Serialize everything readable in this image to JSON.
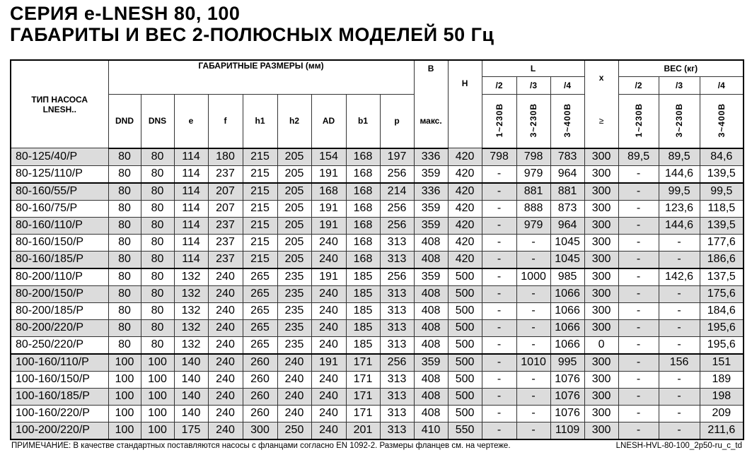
{
  "title_line1": "СЕРИЯ e-LNESH 80, 100",
  "title_line2": "ГАБАРИТЫ И ВЕС 2-ПОЛЮСНЫХ МОДЕЛЕЙ 50 Гц",
  "header": {
    "type_label": "ТИП НАСОСА LNESH..",
    "dims_group": "ГАБАРИТНЫЕ РАЗМЕРЫ (мм)",
    "dims_cols": [
      "DND",
      "DNS",
      "e",
      "f",
      "h1",
      "h2",
      "AD",
      "b1",
      "p"
    ],
    "b_label": "B",
    "b_sub": "макс.",
    "h_label": "H",
    "l_group": "L",
    "l_cols": [
      "/2",
      "/3",
      "/4"
    ],
    "l_volts": [
      "1~230В",
      "3~230В",
      "3~400В"
    ],
    "x_label": "x",
    "x_sub": "≥",
    "w_group": "ВЕС (кг)",
    "w_cols": [
      "/2",
      "/3",
      "/4"
    ],
    "w_volts": [
      "1~230В",
      "3~230В",
      "3~400В"
    ]
  },
  "rows": [
    [
      "80-125/40/P",
      "80",
      "80",
      "114",
      "180",
      "215",
      "205",
      "154",
      "168",
      "197",
      "336",
      "420",
      "798",
      "798",
      "783",
      "300",
      "89,5",
      "89,5",
      "84,6"
    ],
    [
      "80-125/110/P",
      "80",
      "80",
      "114",
      "237",
      "215",
      "205",
      "191",
      "168",
      "256",
      "359",
      "420",
      "-",
      "979",
      "964",
      "300",
      "-",
      "144,6",
      "139,5"
    ],
    [
      "80-160/55/P",
      "80",
      "80",
      "114",
      "207",
      "215",
      "205",
      "168",
      "168",
      "214",
      "336",
      "420",
      "-",
      "881",
      "881",
      "300",
      "-",
      "99,5",
      "99,5"
    ],
    [
      "80-160/75/P",
      "80",
      "80",
      "114",
      "207",
      "215",
      "205",
      "191",
      "168",
      "256",
      "359",
      "420",
      "-",
      "888",
      "873",
      "300",
      "-",
      "123,6",
      "118,5"
    ],
    [
      "80-160/110/P",
      "80",
      "80",
      "114",
      "237",
      "215",
      "205",
      "191",
      "168",
      "256",
      "359",
      "420",
      "-",
      "979",
      "964",
      "300",
      "-",
      "144,6",
      "139,5"
    ],
    [
      "80-160/150/P",
      "80",
      "80",
      "114",
      "237",
      "215",
      "205",
      "240",
      "168",
      "313",
      "408",
      "420",
      "-",
      "-",
      "1045",
      "300",
      "-",
      "-",
      "177,6"
    ],
    [
      "80-160/185/P",
      "80",
      "80",
      "114",
      "237",
      "215",
      "205",
      "240",
      "168",
      "313",
      "408",
      "420",
      "-",
      "-",
      "1045",
      "300",
      "-",
      "-",
      "186,6"
    ],
    [
      "80-200/110/P",
      "80",
      "80",
      "132",
      "240",
      "265",
      "235",
      "191",
      "185",
      "256",
      "359",
      "500",
      "-",
      "1000",
      "985",
      "300",
      "-",
      "142,6",
      "137,5"
    ],
    [
      "80-200/150/P",
      "80",
      "80",
      "132",
      "240",
      "265",
      "235",
      "240",
      "185",
      "313",
      "408",
      "500",
      "-",
      "-",
      "1066",
      "300",
      "-",
      "-",
      "175,6"
    ],
    [
      "80-200/185/P",
      "80",
      "80",
      "132",
      "240",
      "265",
      "235",
      "240",
      "185",
      "313",
      "408",
      "500",
      "-",
      "-",
      "1066",
      "300",
      "-",
      "-",
      "184,6"
    ],
    [
      "80-200/220/P",
      "80",
      "80",
      "132",
      "240",
      "265",
      "235",
      "240",
      "185",
      "313",
      "408",
      "500",
      "-",
      "-",
      "1066",
      "300",
      "-",
      "-",
      "195,6"
    ],
    [
      "80-250/220/P",
      "80",
      "80",
      "132",
      "240",
      "265",
      "235",
      "240",
      "185",
      "313",
      "408",
      "500",
      "-",
      "-",
      "1066",
      "0",
      "-",
      "-",
      "195,6"
    ],
    [
      "100-160/110/P",
      "100",
      "100",
      "140",
      "240",
      "260",
      "240",
      "191",
      "171",
      "256",
      "359",
      "500",
      "-",
      "1010",
      "995",
      "300",
      "-",
      "156",
      "151"
    ],
    [
      "100-160/150/P",
      "100",
      "100",
      "140",
      "240",
      "260",
      "240",
      "240",
      "171",
      "313",
      "408",
      "500",
      "-",
      "-",
      "1076",
      "300",
      "-",
      "-",
      "189"
    ],
    [
      "100-160/185/P",
      "100",
      "100",
      "140",
      "240",
      "260",
      "240",
      "240",
      "171",
      "313",
      "408",
      "500",
      "-",
      "-",
      "1076",
      "300",
      "-",
      "-",
      "198"
    ],
    [
      "100-160/220/P",
      "100",
      "100",
      "140",
      "240",
      "260",
      "240",
      "240",
      "171",
      "313",
      "408",
      "500",
      "-",
      "-",
      "1076",
      "300",
      "-",
      "-",
      "209"
    ],
    [
      "100-200/220/P",
      "100",
      "100",
      "175",
      "240",
      "300",
      "250",
      "240",
      "201",
      "313",
      "410",
      "550",
      "-",
      "-",
      "1109",
      "300",
      "-",
      "-",
      "211,6"
    ]
  ],
  "note": "ПРИМЕЧАНИЕ: В качестве стандартных поставляются насосы с фланцами согласно EN 1092-2. Размеры фланцев см. на чертеже.",
  "doc_code": "LNESH-HVL-80-100_2p50-ru_c_td"
}
